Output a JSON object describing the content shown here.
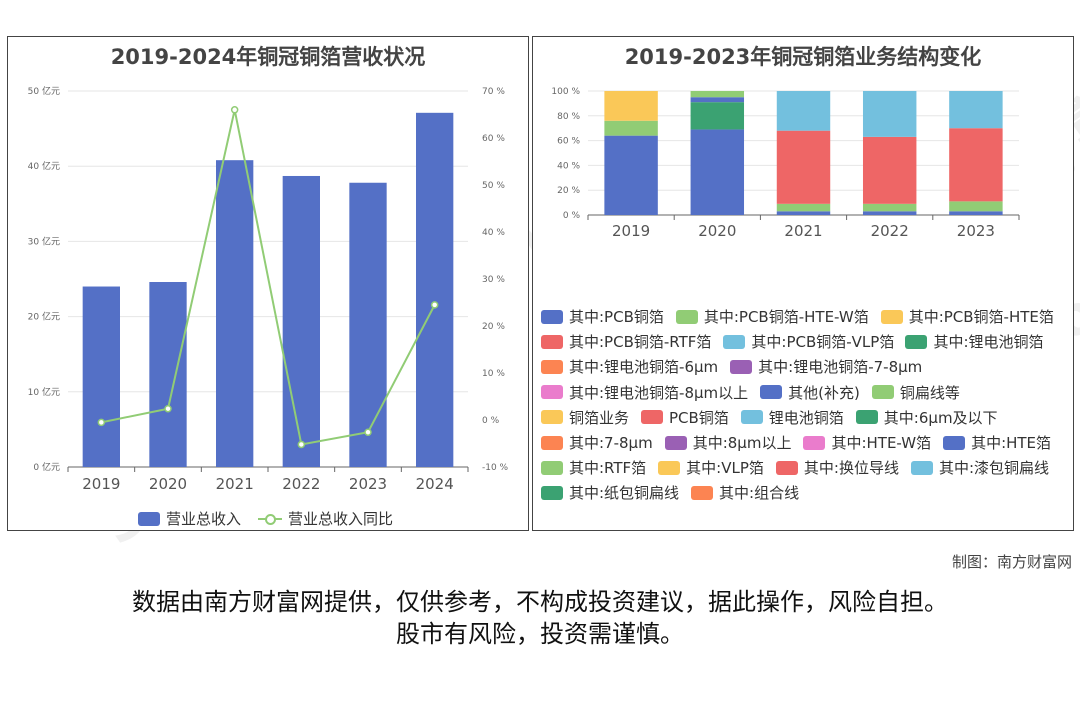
{
  "credit": "制图：南方财富网",
  "disclaimer": {
    "line1": "数据由南方财富网提供，仅供参考，不构成投资建议，据此操作，风险自担。",
    "line2": "股市有风险，投资需谨慎。"
  },
  "watermark": {
    "text1": "南方财富网",
    "text2": "Southmoney.com"
  },
  "chart_data": [
    {
      "type": "bar",
      "title": "2019-2024年铜冠铜箔营收状况",
      "categories": [
        "2019",
        "2020",
        "2021",
        "2022",
        "2023",
        "2024"
      ],
      "series": [
        {
          "name": "营业总收入",
          "kind": "bar",
          "axis": "left",
          "color": "#5470c6",
          "values": [
            24.0,
            24.6,
            40.8,
            38.7,
            37.8,
            47.1
          ]
        },
        {
          "name": "营业总收入同比",
          "kind": "line",
          "axis": "right",
          "color": "#91cc75",
          "values": [
            -0.5,
            2.4,
            66.0,
            -5.2,
            -2.6,
            24.5
          ]
        }
      ],
      "y_left": {
        "min": 0,
        "max": 50,
        "step": 10,
        "suffix": " 亿元"
      },
      "y_right": {
        "min": -10,
        "max": 70,
        "step": 10,
        "suffix": " %"
      },
      "legend_position": "bottom"
    },
    {
      "type": "bar",
      "stacked": true,
      "title": "2019-2023年铜冠铜箔业务结构变化",
      "categories": [
        "2019",
        "2020",
        "2021",
        "2022",
        "2023"
      ],
      "y": {
        "min": 0,
        "max": 100,
        "step": 20,
        "suffix": " %"
      },
      "series": [
        {
          "name": "其中:PCB铜箔",
          "color": "#5470c6",
          "values": [
            64,
            69,
            3,
            3,
            3
          ]
        },
        {
          "name": "其中:PCB铜箔-HTE-W箔",
          "color": "#91cc75",
          "values": [
            12,
            0,
            6,
            6,
            8
          ]
        },
        {
          "name": "其中:PCB铜箔-HTE箔",
          "color": "#fac858",
          "values": [
            24,
            0,
            0,
            0,
            0
          ]
        },
        {
          "name": "其中:PCB铜箔-RTF箔",
          "color": "#ee6666",
          "values": [
            0,
            0,
            59,
            54,
            59
          ]
        },
        {
          "name": "其中:PCB铜箔-VLP箔",
          "color": "#73c0de",
          "values": [
            0,
            0,
            32,
            37,
            30
          ]
        },
        {
          "name": "其中:锂电池铜箔",
          "color": "#3ba272",
          "values": [
            0,
            22,
            0,
            0,
            0
          ]
        },
        {
          "name": "其中:锂电池铜箔-6μm",
          "color": "#fc8452",
          "values": [
            0,
            0,
            0,
            0,
            0
          ]
        },
        {
          "name": "其中:锂电池铜箔-7-8μm",
          "color": "#9a60b4",
          "values": [
            0,
            0,
            0,
            0,
            0
          ]
        },
        {
          "name": "其中:锂电池铜箔-8μm以上",
          "color": "#ea7ccc",
          "values": [
            0,
            0,
            0,
            0,
            0
          ]
        },
        {
          "name": "其他(补充)",
          "color": "#5470c6",
          "values": [
            0,
            4,
            0,
            0,
            0
          ]
        },
        {
          "name": "铜扁线等",
          "color": "#91cc75",
          "values": [
            0,
            5,
            0,
            0,
            0
          ]
        },
        {
          "name": "铜箔业务",
          "color": "#fac858",
          "values": [
            0,
            0,
            0,
            0,
            0
          ]
        },
        {
          "name": "PCB铜箔",
          "color": "#ee6666",
          "values": [
            0,
            0,
            0,
            0,
            0
          ]
        },
        {
          "name": "锂电池铜箔",
          "color": "#73c0de",
          "values": [
            0,
            0,
            0,
            0,
            0
          ]
        },
        {
          "name": "其中:6μm及以下",
          "color": "#3ba272",
          "values": [
            0,
            0,
            0,
            0,
            0
          ]
        },
        {
          "name": "其中:7-8μm",
          "color": "#fc8452",
          "values": [
            0,
            0,
            0,
            0,
            0
          ]
        },
        {
          "name": "其中:8μm以上",
          "color": "#9a60b4",
          "values": [
            0,
            0,
            0,
            0,
            0
          ]
        },
        {
          "name": "其中:HTE-W箔",
          "color": "#ea7ccc",
          "values": [
            0,
            0,
            0,
            0,
            0
          ]
        },
        {
          "name": "其中:HTE箔",
          "color": "#5470c6",
          "values": [
            0,
            0,
            0,
            0,
            0
          ]
        },
        {
          "name": "其中:RTF箔",
          "color": "#91cc75",
          "values": [
            0,
            0,
            0,
            0,
            0
          ]
        },
        {
          "name": "其中:VLP箔",
          "color": "#fac858",
          "values": [
            0,
            0,
            0,
            0,
            0
          ]
        },
        {
          "name": "其中:换位导线",
          "color": "#ee6666",
          "values": [
            0,
            0,
            0,
            0,
            0
          ]
        },
        {
          "name": "其中:漆包铜扁线",
          "color": "#73c0de",
          "values": [
            0,
            0,
            0,
            0,
            0
          ]
        },
        {
          "name": "其中:纸包铜扁线",
          "color": "#3ba272",
          "values": [
            0,
            0,
            0,
            0,
            0
          ]
        },
        {
          "name": "其中:组合线",
          "color": "#fc8452",
          "values": [
            0,
            0,
            0,
            0,
            0
          ]
        }
      ],
      "legend_position": "bottom"
    }
  ]
}
